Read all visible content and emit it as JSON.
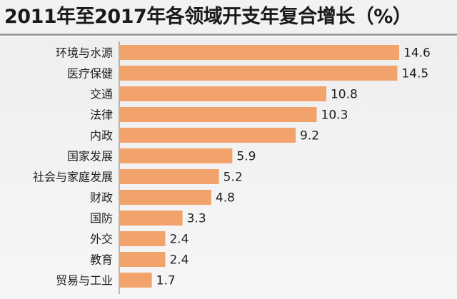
{
  "chart_data": {
    "type": "bar",
    "orientation": "horizontal",
    "title": "2011年至2017年各领域开支年复合增长（%）",
    "categories": [
      "环境与水源",
      "医疗保健",
      "交通",
      "法律",
      "内政",
      "国家发展",
      "社会与家庭发展",
      "财政",
      "国防",
      "外交",
      "教育",
      "贸易与工业"
    ],
    "values": [
      14.6,
      14.5,
      10.8,
      10.3,
      9.2,
      5.9,
      5.2,
      4.8,
      3.3,
      2.4,
      2.4,
      1.7
    ],
    "value_labels": [
      "14.6",
      "14.5",
      "10.8",
      "10.3",
      "9.2",
      "5.9",
      "5.2",
      "4.8",
      "3.3",
      "2.4",
      "2.4",
      "1.7"
    ],
    "xlabel": "",
    "ylabel": "",
    "grid": false,
    "bar_color": "#f2a36c"
  }
}
